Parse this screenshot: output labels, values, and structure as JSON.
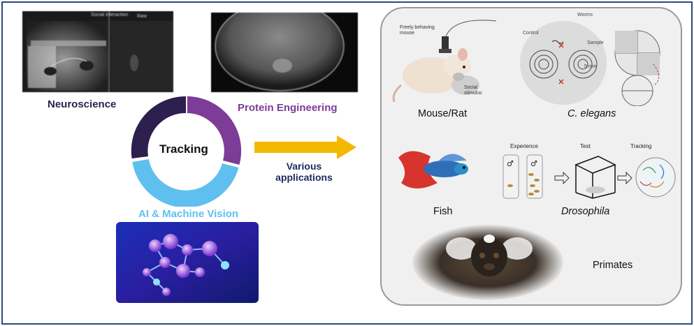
{
  "frame_color": "#2e4a7a",
  "left": {
    "neuroscience_image": {
      "caption_top": "Social interaction",
      "caption_raw": "Raw"
    },
    "neuroscience_label": "Neuroscience",
    "protein_label": "Protein Engineering",
    "ai_label": "AI & Machine Vision",
    "ring_center_label": "Tracking",
    "colors": {
      "neuroscience": "#2d1f4e",
      "protein": "#7c3c98",
      "ai": "#5fc0ef"
    }
  },
  "arrow": {
    "label_line1": "Various",
    "label_line2": "applications",
    "color": "#f5b800",
    "label_color": "#1b2a5e"
  },
  "applications": {
    "mouse": {
      "label": "Mouse/Rat",
      "annot_behaving": "Freely behaving mouse",
      "annot_social": "Social stimulus"
    },
    "elegans": {
      "label": "C. elegans",
      "annot_control": "Control",
      "annot_sample": "Sample",
      "annot_worms": "Worms",
      "annot_scale": "5 mm"
    },
    "fish": {
      "label": "Fish"
    },
    "drosophila": {
      "label": "Drosophila",
      "step_experience": "Experience",
      "step_test": "Test",
      "step_tracking": "Tracking"
    },
    "primates": {
      "label": "Primates"
    }
  }
}
